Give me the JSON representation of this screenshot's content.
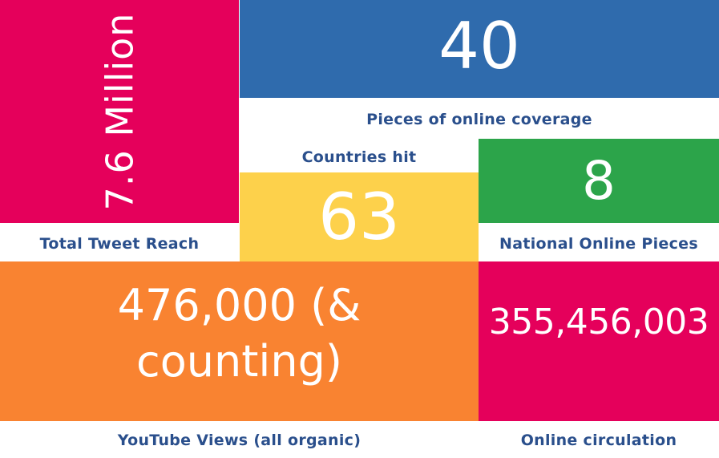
{
  "colors": {
    "pink": "#e5005b",
    "blue": "#2f6bad",
    "yellow": "#fdd14b",
    "green": "#2ca44a",
    "orange": "#f98331",
    "label_text": "#2a4f8c"
  },
  "stats": {
    "tweet_reach": {
      "value": "7.6 Million",
      "label": "Total Tweet Reach"
    },
    "online_coverage": {
      "value": "40",
      "label": "Pieces of online coverage"
    },
    "countries": {
      "value": "63",
      "label": "Countries hit"
    },
    "national": {
      "value": "8",
      "label": "National Online Pieces"
    },
    "youtube": {
      "value_line1": "476,000 (&",
      "value_line2": "counting)",
      "label": "YouTube Views (all organic)"
    },
    "circulation": {
      "value": "355,456,003",
      "label": "Online circulation"
    }
  }
}
